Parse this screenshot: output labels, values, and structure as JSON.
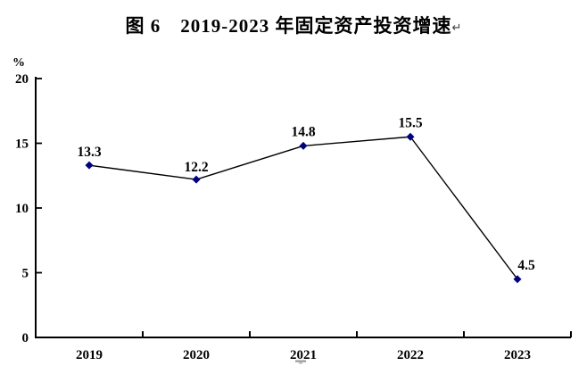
{
  "title": {
    "text": "图 6　2019-2023 年固定资产投资增速",
    "return_mark": "↵"
  },
  "chart_data": {
    "type": "line",
    "title": "图 6　2019-2023 年固定资产投资增速",
    "categories": [
      "2019",
      "2020",
      "2021",
      "2022",
      "2023"
    ],
    "values": [
      13.3,
      12.2,
      14.8,
      15.5,
      4.5
    ],
    "data_labels": [
      "13.3",
      "12.2",
      "14.8",
      "15.5",
      "4.5"
    ],
    "series": [
      {
        "name": "固定资产投资增速",
        "values": [
          13.3,
          12.2,
          14.8,
          15.5,
          4.5
        ]
      }
    ],
    "xlabel": "",
    "ylabel": "%",
    "ylim": [
      0,
      20
    ],
    "yticks": [
      0,
      5,
      10,
      15,
      20
    ],
    "grid": false,
    "legend_position": "none",
    "marker_shape": "diamond",
    "line_color": "#000000",
    "marker_color": "#000080",
    "axis_color": "#000000",
    "label_dx": [
      0,
      0,
      0,
      0,
      10
    ],
    "label_dy": [
      -10,
      -9,
      -11,
      -11,
      -11
    ]
  }
}
